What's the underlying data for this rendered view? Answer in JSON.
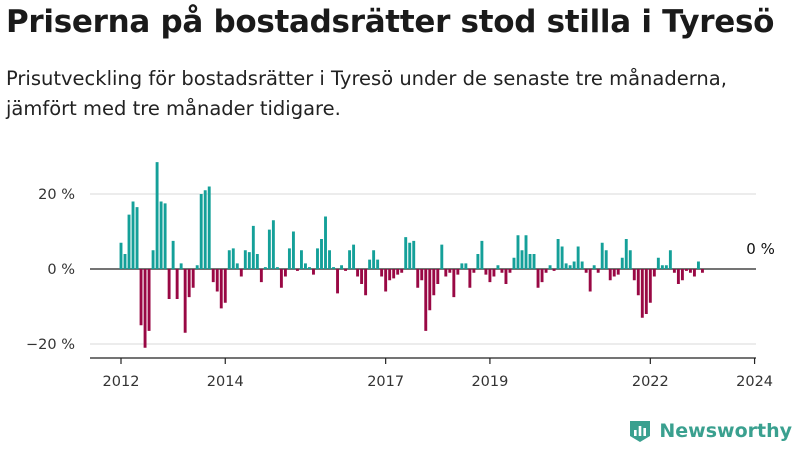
{
  "title": "Priserna på bostadsrätter stod stilla i Tyresö",
  "subtitle": "Prisutveckling för bostadsrätter i Tyresö under de senaste tre månaderna, jämfört med tre månader tidigare.",
  "brand": "Newsworthy",
  "colors": {
    "positive": "#14a099",
    "negative": "#990844",
    "axis": "#222222",
    "text": "#333333"
  },
  "chart_data": {
    "type": "bar",
    "ylim": [
      -22,
      29
    ],
    "yticks": [
      {
        "value": 20,
        "label": "20 %"
      },
      {
        "value": 0,
        "label": "0 %"
      },
      {
        "value": -20,
        "label": "−20 %"
      }
    ],
    "xticks": [
      {
        "month": 0,
        "label": "2012"
      },
      {
        "month": 26,
        "label": "2014"
      },
      {
        "month": 66,
        "label": "2017"
      },
      {
        "month": 92,
        "label": "2019"
      },
      {
        "month": 132,
        "label": "2022"
      },
      {
        "month": 158,
        "label": "2024"
      }
    ],
    "annotation": {
      "month": 158,
      "value": 0,
      "label": "0 %"
    },
    "values": [
      7,
      4,
      14.5,
      18,
      16.5,
      -15,
      -21,
      -16.5,
      5,
      28.5,
      18,
      17.5,
      -8,
      7.5,
      -8,
      1.5,
      -17,
      -7.5,
      -5,
      1,
      20,
      21,
      22,
      -3.5,
      -6,
      -10.5,
      -9,
      5,
      5.5,
      1.5,
      -2,
      5,
      4.5,
      11.5,
      4,
      -3.5,
      0.5,
      10.5,
      13,
      0.5,
      -5,
      -2,
      5.5,
      10,
      -0.5,
      5,
      1.5,
      0.5,
      -1.5,
      5.5,
      8,
      14,
      5,
      0.5,
      -6.5,
      1,
      -0.5,
      5,
      6.5,
      -2,
      -4,
      -7,
      2.5,
      5,
      2.5,
      -2,
      -6,
      -3,
      -2.5,
      -1.5,
      -1,
      8.5,
      7,
      7.5,
      -5,
      -3,
      -16.5,
      -11,
      -7,
      -4,
      6.5,
      -2,
      -1,
      -7.5,
      -1.5,
      1.5,
      1.5,
      -5,
      -1,
      4,
      7.5,
      -1.5,
      -3.5,
      -2,
      1,
      -1,
      -4,
      -1,
      3,
      9,
      5,
      9,
      4,
      4,
      -5,
      -3.5,
      -1,
      1,
      -0.5,
      8,
      6,
      1.5,
      1,
      2,
      6,
      2,
      -1,
      -6,
      1,
      -1,
      7,
      5,
      -3,
      -2,
      -1.5,
      3,
      8,
      5,
      -3,
      -7,
      -13,
      -12,
      -9,
      -2,
      3,
      1,
      1,
      5,
      -1,
      -4,
      -3,
      -0.5,
      -1,
      -2,
      2,
      -1
    ]
  }
}
